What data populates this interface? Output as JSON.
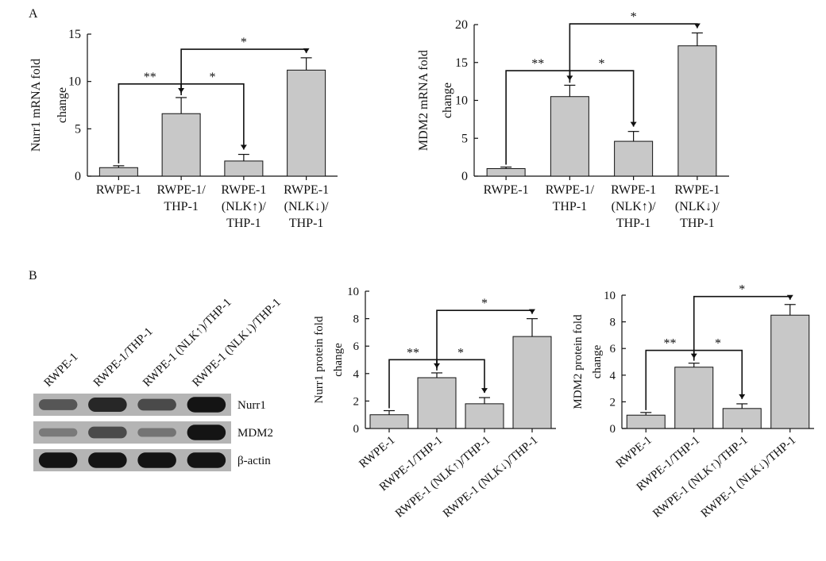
{
  "panels": {
    "a_label": "A",
    "b_label": "B"
  },
  "chart_data": [
    {
      "id": "a1",
      "type": "bar",
      "ylabel_lines": [
        "Nurr1 mRNA fold",
        "change"
      ],
      "ylim": [
        0,
        15
      ],
      "yticks": [
        0,
        5,
        10,
        15
      ],
      "categories": [
        [
          "RWPE-1"
        ],
        [
          "RWPE-1/",
          "THP-1"
        ],
        [
          "RWPE-1",
          "(NLK↑)/",
          "THP-1"
        ],
        [
          "RWPE-1",
          "(NLK↓)/",
          "THP-1"
        ]
      ],
      "values": [
        0.9,
        6.6,
        1.6,
        11.2
      ],
      "errors": [
        0.2,
        1.7,
        0.7,
        1.3
      ],
      "significance": [
        {
          "from": 0,
          "to": 1,
          "label": "**"
        },
        {
          "from": 1,
          "to": 2,
          "label": "*"
        },
        {
          "from": 1,
          "to": 3,
          "label": "*"
        }
      ]
    },
    {
      "id": "a2",
      "type": "bar",
      "ylabel_lines": [
        "MDM2 mRNA fold",
        "change"
      ],
      "ylim": [
        0,
        20
      ],
      "yticks": [
        0,
        5,
        10,
        15,
        20
      ],
      "categories": [
        [
          "RWPE-1"
        ],
        [
          "RWPE-1/",
          "THP-1"
        ],
        [
          "RWPE-1",
          "(NLK↑)/",
          "THP-1"
        ],
        [
          "RWPE-1",
          "(NLK↓)/",
          "THP-1"
        ]
      ],
      "values": [
        1.0,
        10.5,
        4.6,
        17.2
      ],
      "errors": [
        0.2,
        1.5,
        1.3,
        1.7
      ],
      "significance": [
        {
          "from": 0,
          "to": 1,
          "label": "**"
        },
        {
          "from": 1,
          "to": 2,
          "label": "*"
        },
        {
          "from": 1,
          "to": 3,
          "label": "*"
        }
      ]
    },
    {
      "id": "b1",
      "type": "bar",
      "ylabel_lines": [
        "Nurr1 protein fold",
        "change"
      ],
      "ylim": [
        0,
        10
      ],
      "yticks": [
        0,
        2,
        4,
        6,
        8,
        10
      ],
      "categories": [
        "RWPE-1",
        "RWPE-1/THP-1",
        "RWPE-1 (NLK↑)/THP-1",
        "RWPE-1 (NLK↓)/THP-1"
      ],
      "values": [
        1.0,
        3.7,
        1.8,
        6.7
      ],
      "errors": [
        0.3,
        0.35,
        0.45,
        1.3
      ],
      "significance": [
        {
          "from": 0,
          "to": 1,
          "label": "**"
        },
        {
          "from": 1,
          "to": 2,
          "label": "*"
        },
        {
          "from": 1,
          "to": 3,
          "label": "*"
        }
      ]
    },
    {
      "id": "b2",
      "type": "bar",
      "ylabel_lines": [
        "MDM2 protein fold",
        "change"
      ],
      "ylim": [
        0,
        10
      ],
      "yticks": [
        0,
        2,
        4,
        6,
        8,
        10
      ],
      "ytick_labels": [
        "0",
        "2",
        "4",
        "6",
        "8",
        "10"
      ],
      "categories": [
        "RWPE-1",
        "RWPE-1/THP-1",
        "RWPE-1 (NLK↑)/THP-1",
        "RWPE-1 (NLK↓)/THP-1"
      ],
      "values": [
        1.0,
        4.6,
        1.5,
        8.5
      ],
      "errors": [
        0.2,
        0.3,
        0.35,
        0.8
      ],
      "significance": [
        {
          "from": 0,
          "to": 1,
          "label": "**"
        },
        {
          "from": 1,
          "to": 2,
          "label": "*"
        },
        {
          "from": 1,
          "to": 3,
          "label": "*"
        }
      ]
    }
  ],
  "blot": {
    "lanes": [
      "RWPE-1",
      "RWPE-1/THP-1",
      "RWPE-1 (NLK↑)/THP-1",
      "RWPE-1 (NLK↓)/THP-1"
    ],
    "rows": [
      {
        "name": "Nurr1",
        "intensity": [
          0.45,
          0.85,
          0.55,
          1.0
        ]
      },
      {
        "name": "MDM2",
        "intensity": [
          0.15,
          0.55,
          0.2,
          1.0
        ]
      },
      {
        "name": "β-actin",
        "intensity": [
          1.0,
          1.0,
          1.0,
          1.0
        ]
      }
    ]
  },
  "colors": {
    "bar_fill": "#c8c8c8",
    "stroke": "#111111",
    "blot_bg": "#b4b4b4",
    "band": "#141414"
  }
}
